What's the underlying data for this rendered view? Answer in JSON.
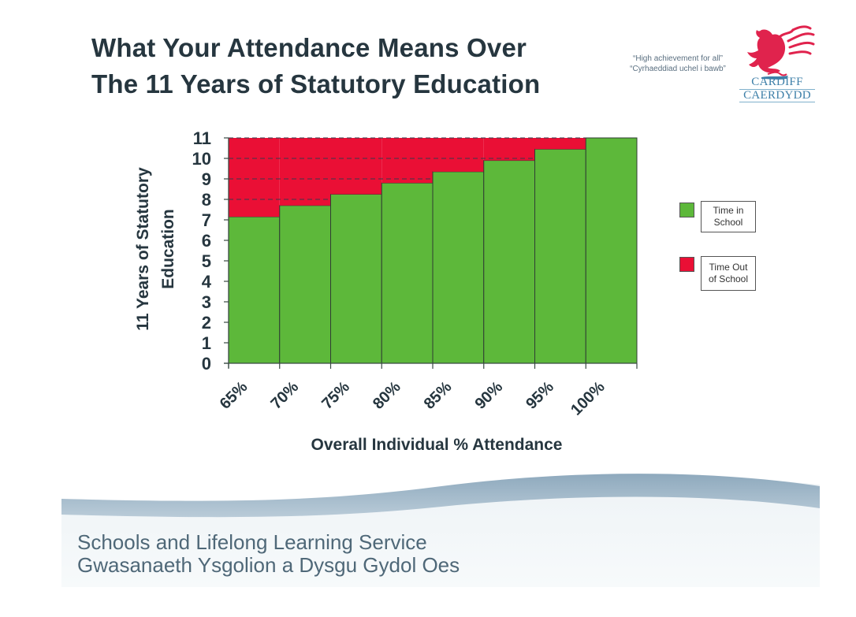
{
  "header": {
    "title_line1": "What Your Attendance Means Over",
    "title_line2": "The 11 Years of Statutory Education",
    "motto_en": "“High achievement for all”",
    "motto_cy": "“Cyrhaeddiad uchel i bawb”",
    "logo_line1": "CARDIFF",
    "logo_line2": "CAERDYDD",
    "logo_icon": "welsh-dragon-icon"
  },
  "colors": {
    "in_school": "#5db83a",
    "out_of_school": "#ea0f35",
    "title_text": "#26363f",
    "footer_text": "#4f6878",
    "logo_red": "#e0234d",
    "logo_blue": "#3d7fa8"
  },
  "chart_data": {
    "type": "bar",
    "stacked": true,
    "title": "What Your Attendance Means Over The 11 Years of Statutory Education",
    "xlabel": "Overall Individual % Attendance",
    "ylabel": "11 Years of Statutory Education",
    "categories": [
      "65%",
      "70%",
      "75%",
      "80%",
      "85%",
      "90%",
      "95%",
      "100%"
    ],
    "series": [
      {
        "name": "Time in School",
        "color": "#5db83a",
        "values": [
          7.15,
          7.7,
          8.25,
          8.8,
          9.35,
          9.9,
          10.45,
          11
        ]
      },
      {
        "name": "Time Out of School",
        "color": "#ea0f35",
        "values": [
          3.85,
          3.3,
          2.75,
          2.2,
          1.65,
          1.1,
          0.55,
          0
        ]
      }
    ],
    "ylim": [
      0,
      11
    ],
    "yticks": [
      "0",
      "1",
      "2",
      "3",
      "4",
      "5",
      "6",
      "7",
      "8",
      "9",
      "10",
      "11"
    ],
    "grid": "dashed horizontal",
    "legend": "right",
    "legend_labels": [
      {
        "line1": "Time in",
        "line2": "School"
      },
      {
        "line1": "Time Out",
        "line2": "of School"
      }
    ]
  },
  "footer": {
    "line1": "Schools and Lifelong Learning Service",
    "line2": "Gwasanaeth Ysgolion a Dysgu Gydol Oes"
  }
}
